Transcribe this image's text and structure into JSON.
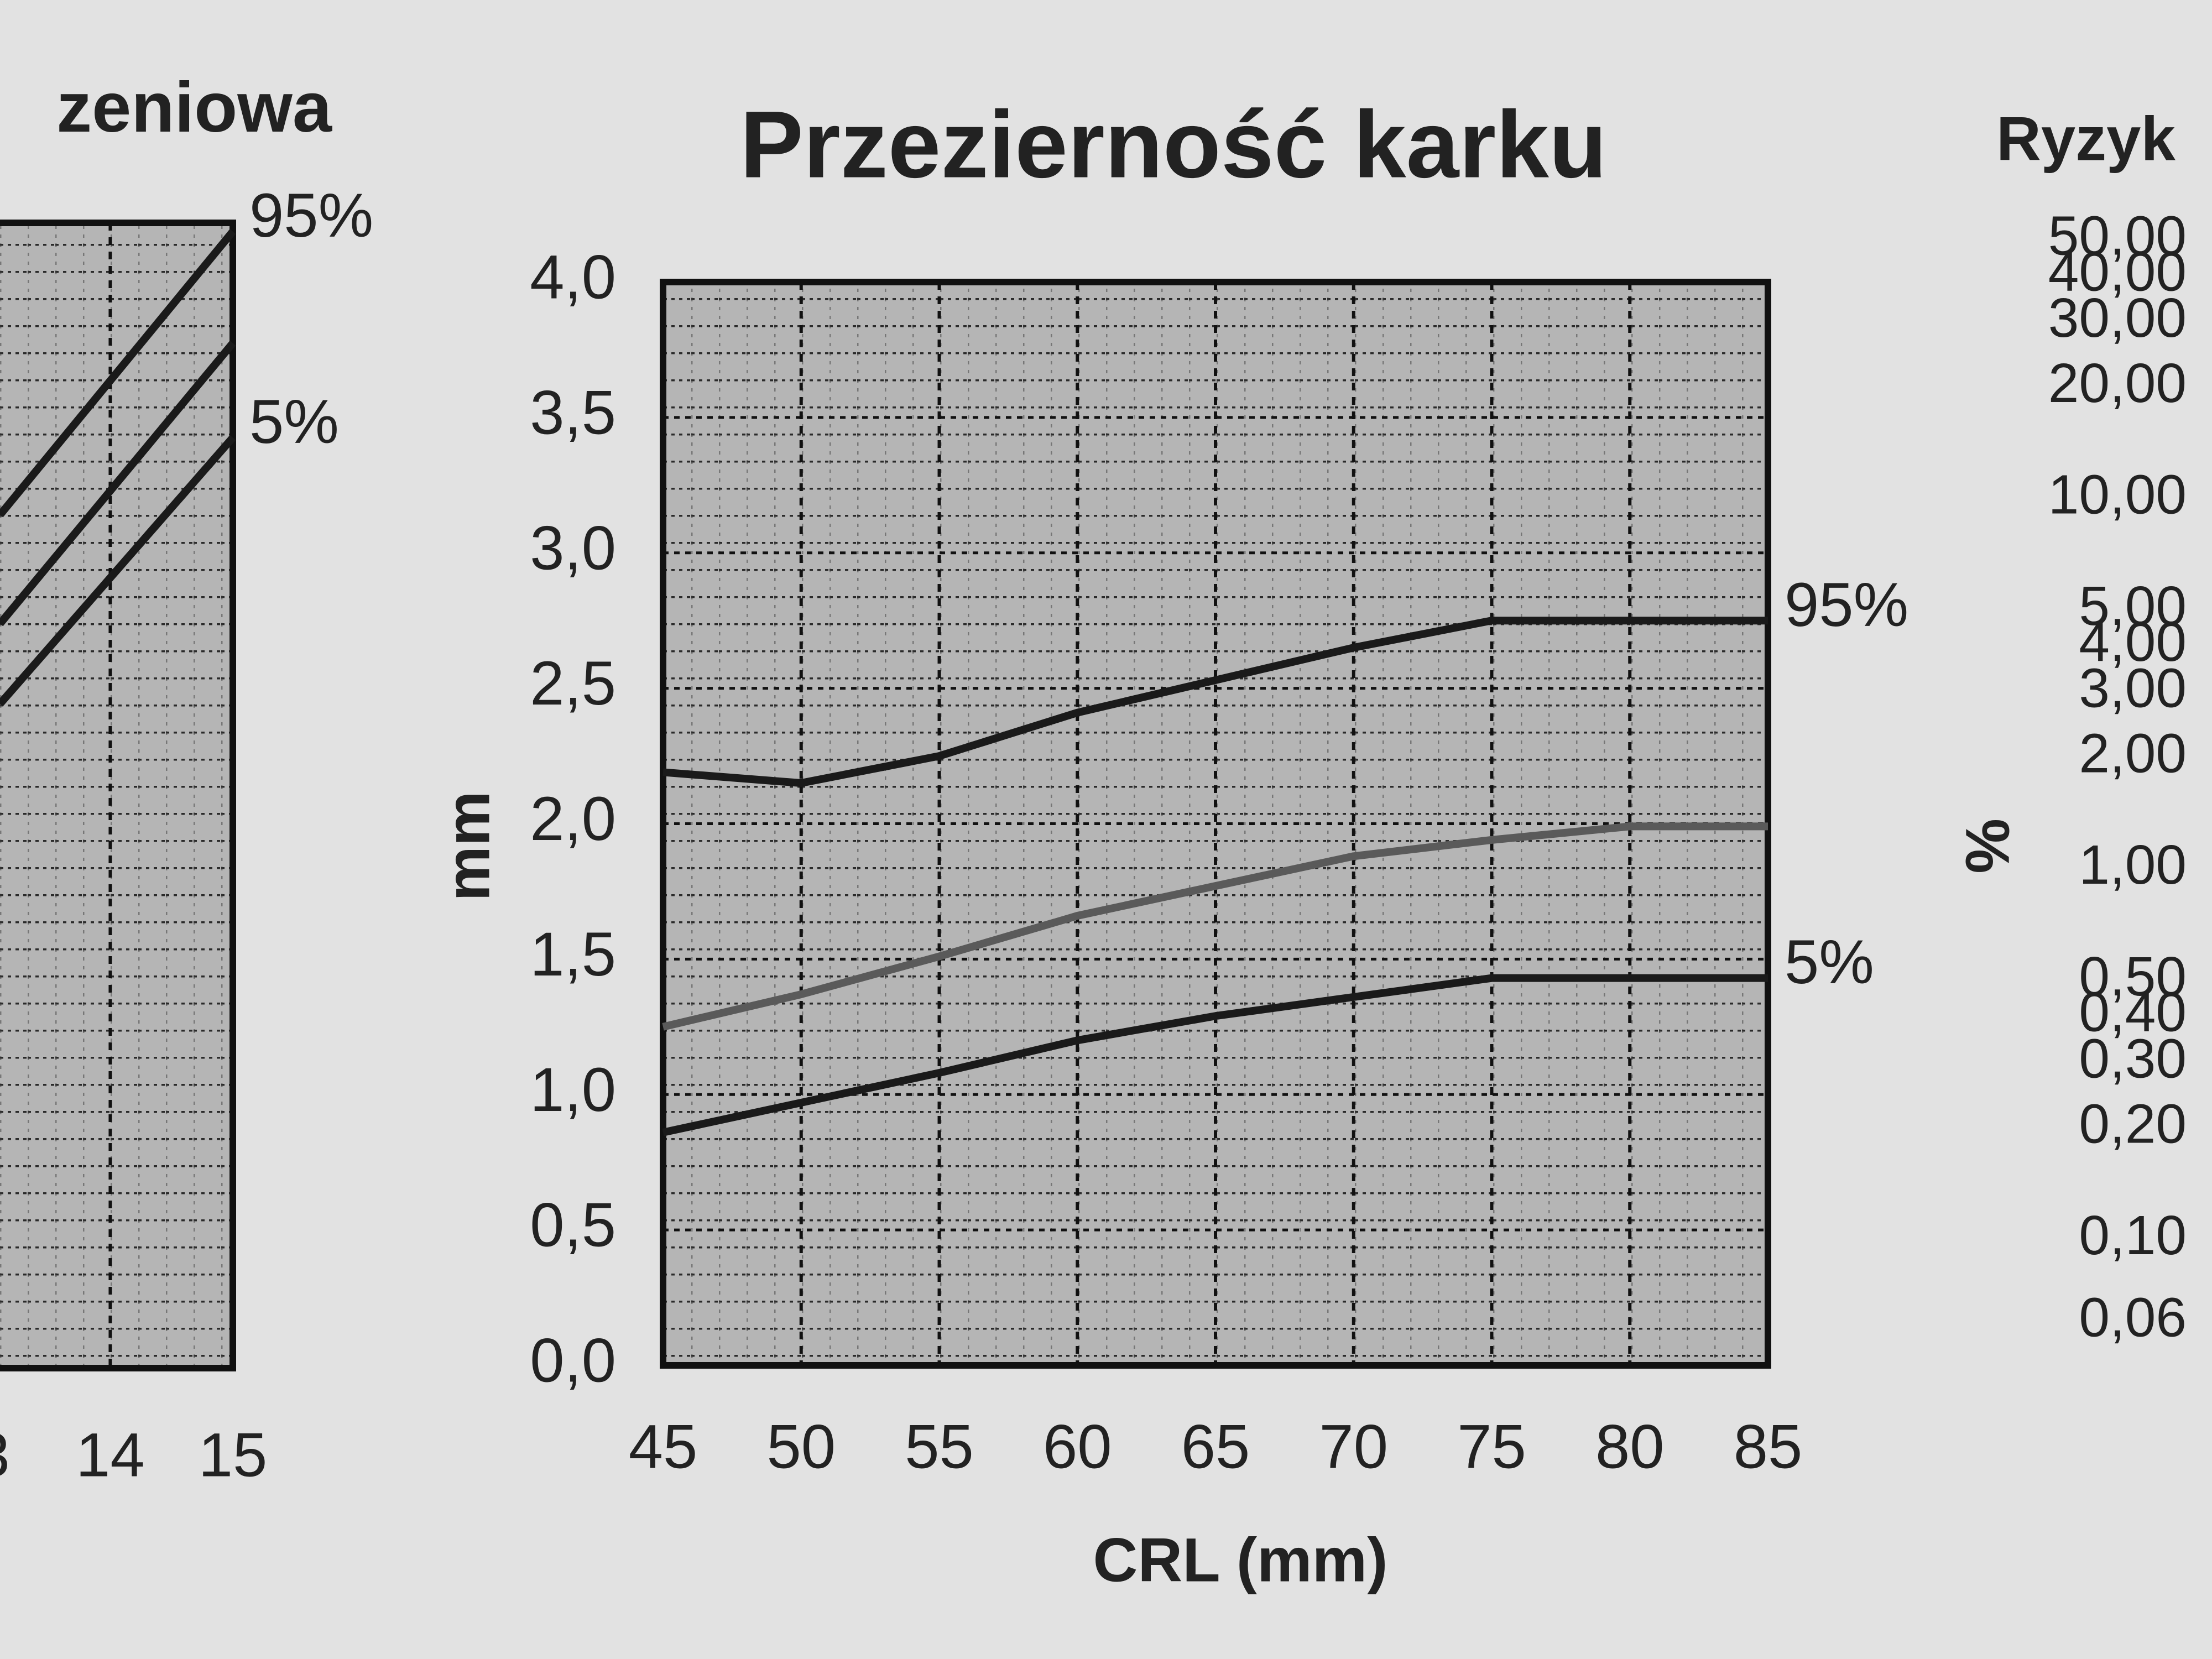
{
  "chart_data": [
    {
      "type": "line",
      "title": "zeniowa",
      "x": [
        13.1,
        15
      ],
      "xlim": [
        13.1,
        15
      ],
      "ylim": [
        0,
        4
      ],
      "xticks": [
        {
          "value": 13,
          "label": "3"
        },
        14,
        15
      ],
      "grid": true,
      "series": [
        {
          "name": "95%",
          "color": "#1a1a1a",
          "values": [
            2.98,
            3.97
          ]
        },
        {
          "color": "#1a1a1a",
          "values": [
            2.6,
            3.58
          ]
        },
        {
          "name": "5%",
          "color": "#1a1a1a",
          "values": [
            2.32,
            3.25
          ]
        }
      ]
    },
    {
      "type": "line",
      "title": "Przezierność karku",
      "x_label": "CRL (mm)",
      "y_label": "mm",
      "x": [
        45,
        50,
        55,
        60,
        65,
        70,
        75,
        80,
        85
      ],
      "xlim": [
        45,
        85
      ],
      "ylim": [
        0,
        4
      ],
      "xticks": [
        45,
        50,
        55,
        60,
        65,
        70,
        75,
        80,
        85
      ],
      "yticks": [
        {
          "value": 0,
          "label": "0,0"
        },
        {
          "value": 0.5,
          "label": "0,5"
        },
        {
          "value": 1,
          "label": "1,0"
        },
        {
          "value": 1.5,
          "label": "1,5"
        },
        {
          "value": 2,
          "label": "2,0"
        },
        {
          "value": 2.5,
          "label": "2,5"
        },
        {
          "value": 3,
          "label": "3,0"
        },
        {
          "value": 3.5,
          "label": "3,5"
        },
        {
          "value": 4,
          "label": "4,0"
        }
      ],
      "grid": true,
      "series": [
        {
          "name": "95%",
          "color": "#1a1a1a",
          "values": [
            2.19,
            2.15,
            2.25,
            2.41,
            2.53,
            2.65,
            2.75,
            2.75,
            2.75
          ]
        },
        {
          "color": "#5a5a5a",
          "values": [
            1.25,
            1.37,
            1.51,
            1.66,
            1.77,
            1.88,
            1.94,
            1.99,
            1.99
          ]
        },
        {
          "name": "5%",
          "color": "#1a1a1a",
          "values": [
            0.86,
            0.97,
            1.08,
            1.2,
            1.29,
            1.36,
            1.43,
            1.43,
            1.43
          ]
        }
      ]
    },
    {
      "type": "scale",
      "title": "Ryzyk",
      "y_label": "%",
      "log_scale": true,
      "ylim": [
        0.06,
        50
      ],
      "yticks": [
        {
          "value": 50,
          "label": "50,00"
        },
        {
          "value": 40,
          "label": "40,00"
        },
        {
          "value": 30,
          "label": "30,00"
        },
        {
          "value": 20,
          "label": "20,00"
        },
        {
          "value": 10,
          "label": "10,00"
        },
        {
          "value": 5,
          "label": "5,00"
        },
        {
          "value": 4,
          "label": "4,00"
        },
        {
          "value": 3,
          "label": "3,00"
        },
        {
          "value": 2,
          "label": "2,00"
        },
        {
          "value": 1,
          "label": "1,00"
        },
        {
          "value": 0.5,
          "label": "0,50"
        },
        {
          "value": 0.4,
          "label": "0,40"
        },
        {
          "value": 0.3,
          "label": "0,30"
        },
        {
          "value": 0.2,
          "label": "0,20"
        },
        {
          "value": 0.1,
          "label": "0,10"
        },
        {
          "value": 0.06,
          "label": "0,06"
        }
      ]
    }
  ]
}
